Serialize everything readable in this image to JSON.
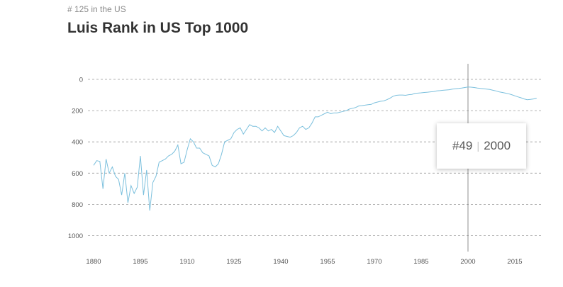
{
  "header": {
    "subtitle": "# 125 in the US",
    "title": "Luis Rank in US Top 1000"
  },
  "tooltip": {
    "rank": "#49",
    "separator": "|",
    "year": "2000"
  },
  "colors": {
    "line": "#7cc0dd",
    "grid": "#999999",
    "cursor": "#777777",
    "text": "#555555"
  },
  "chart_data": {
    "type": "line",
    "title": "Luis Rank in US Top 1000",
    "xlabel": "",
    "ylabel": "",
    "xlim": [
      1880,
      2023
    ],
    "ylim": [
      0,
      1000
    ],
    "y_inverted": true,
    "grid": true,
    "x_ticks": [
      1880,
      1895,
      1910,
      1925,
      1940,
      1955,
      1970,
      1985,
      2000,
      2015
    ],
    "y_ticks": [
      0,
      200,
      400,
      600,
      800,
      1000
    ],
    "highlight": {
      "x": 2000,
      "y": 49
    },
    "series": [
      {
        "x": [
          1880,
          1881,
          1882,
          1883,
          1884,
          1885,
          1886,
          1887,
          1888,
          1889,
          1890,
          1891,
          1892,
          1893,
          1894,
          1895,
          1896,
          1897,
          1898,
          1899,
          1900,
          1901,
          1902,
          1903,
          1904,
          1905,
          1906,
          1907,
          1908,
          1909,
          1910,
          1911,
          1912,
          1913,
          1914,
          1915,
          1916,
          1917,
          1918,
          1919,
          1920,
          1921,
          1922,
          1923,
          1924,
          1925,
          1926,
          1927,
          1928,
          1929,
          1930,
          1931,
          1932,
          1933,
          1934,
          1935,
          1936,
          1937,
          1938,
          1939,
          1940,
          1941,
          1942,
          1943,
          1944,
          1945,
          1946,
          1947,
          1948,
          1949,
          1950,
          1951,
          1952,
          1953,
          1954,
          1955,
          1956,
          1957,
          1958,
          1959,
          1960,
          1961,
          1962,
          1963,
          1964,
          1965,
          1966,
          1967,
          1968,
          1969,
          1970,
          1971,
          1972,
          1973,
          1974,
          1975,
          1976,
          1977,
          1978,
          1979,
          1980,
          1981,
          1982,
          1983,
          1984,
          1985,
          1986,
          1987,
          1988,
          1989,
          1990,
          1991,
          1992,
          1993,
          1994,
          1995,
          1996,
          1997,
          1998,
          1999,
          2000,
          2001,
          2002,
          2003,
          2004,
          2005,
          2006,
          2007,
          2008,
          2009,
          2010,
          2011,
          2012,
          2013,
          2014,
          2015,
          2016,
          2017,
          2018,
          2019,
          2020,
          2021,
          2022
        ],
        "values": [
          550,
          520,
          525,
          700,
          510,
          600,
          560,
          620,
          640,
          740,
          600,
          790,
          680,
          730,
          690,
          490,
          740,
          580,
          840,
          660,
          620,
          530,
          520,
          510,
          490,
          480,
          460,
          420,
          540,
          530,
          450,
          380,
          400,
          440,
          440,
          470,
          480,
          490,
          550,
          560,
          540,
          480,
          400,
          390,
          380,
          340,
          320,
          310,
          350,
          320,
          290,
          300,
          300,
          310,
          330,
          310,
          330,
          320,
          340,
          300,
          330,
          360,
          365,
          370,
          360,
          340,
          310,
          300,
          320,
          310,
          280,
          240,
          240,
          230,
          220,
          210,
          220,
          215,
          215,
          210,
          205,
          200,
          190,
          185,
          180,
          170,
          168,
          165,
          162,
          160,
          150,
          145,
          140,
          138,
          130,
          120,
          108,
          102,
          100,
          100,
          102,
          98,
          96,
          90,
          88,
          86,
          84,
          82,
          80,
          78,
          74,
          72,
          70,
          68,
          66,
          62,
          60,
          58,
          56,
          52,
          49,
          50,
          52,
          56,
          58,
          60,
          62,
          65,
          70,
          74,
          80,
          84,
          88,
          92,
          98,
          105,
          112,
          118,
          125,
          130,
          128,
          125,
          120
        ]
      }
    ]
  }
}
